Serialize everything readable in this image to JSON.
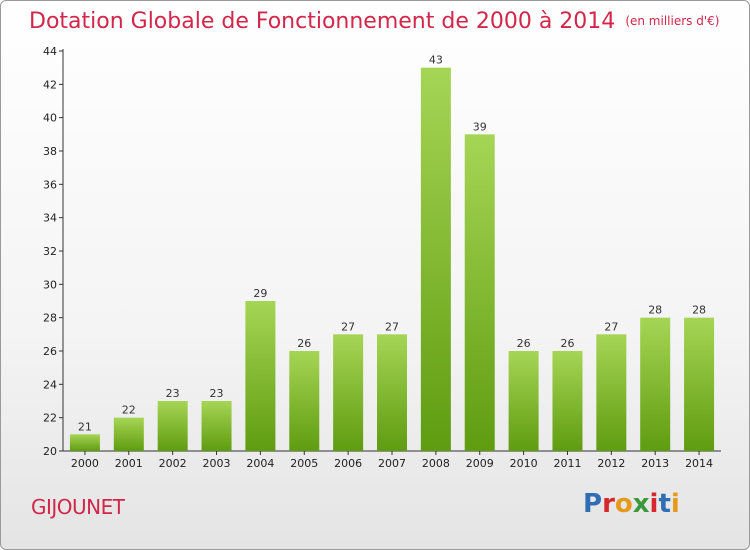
{
  "title": {
    "main": "Dotation Globale de Fonctionnement de 2000 à 2014",
    "unit": "(en milliers d'€)"
  },
  "commune": "GIJOUNET",
  "logo": {
    "text": "Proxiti",
    "letter_colors": [
      "#2f6db5",
      "#d8262d",
      "#e59a1c",
      "#3a9a3a",
      "#d8262d",
      "#2f6db5",
      "#e59a1c"
    ]
  },
  "colors": {
    "bar_top": "#a6d555",
    "bar_bottom": "#5f9c10",
    "title": "#d2264a"
  },
  "chart_data": {
    "type": "bar",
    "title": "Dotation Globale de Fonctionnement de 2000 à 2014",
    "subtitle": "(en milliers d'€)",
    "categories": [
      "2000",
      "2001",
      "2002",
      "2003",
      "2004",
      "2005",
      "2006",
      "2007",
      "2008",
      "2009",
      "2010",
      "2011",
      "2012",
      "2013",
      "2014"
    ],
    "values": [
      21,
      22,
      23,
      23,
      29,
      26,
      27,
      27,
      43,
      39,
      26,
      26,
      27,
      28,
      28
    ],
    "ylim": [
      20,
      44
    ],
    "yticks": [
      20,
      22,
      24,
      26,
      28,
      30,
      32,
      34,
      36,
      38,
      40,
      42,
      44
    ],
    "xlabel": "",
    "ylabel": "",
    "grid": false,
    "legend": "none"
  }
}
